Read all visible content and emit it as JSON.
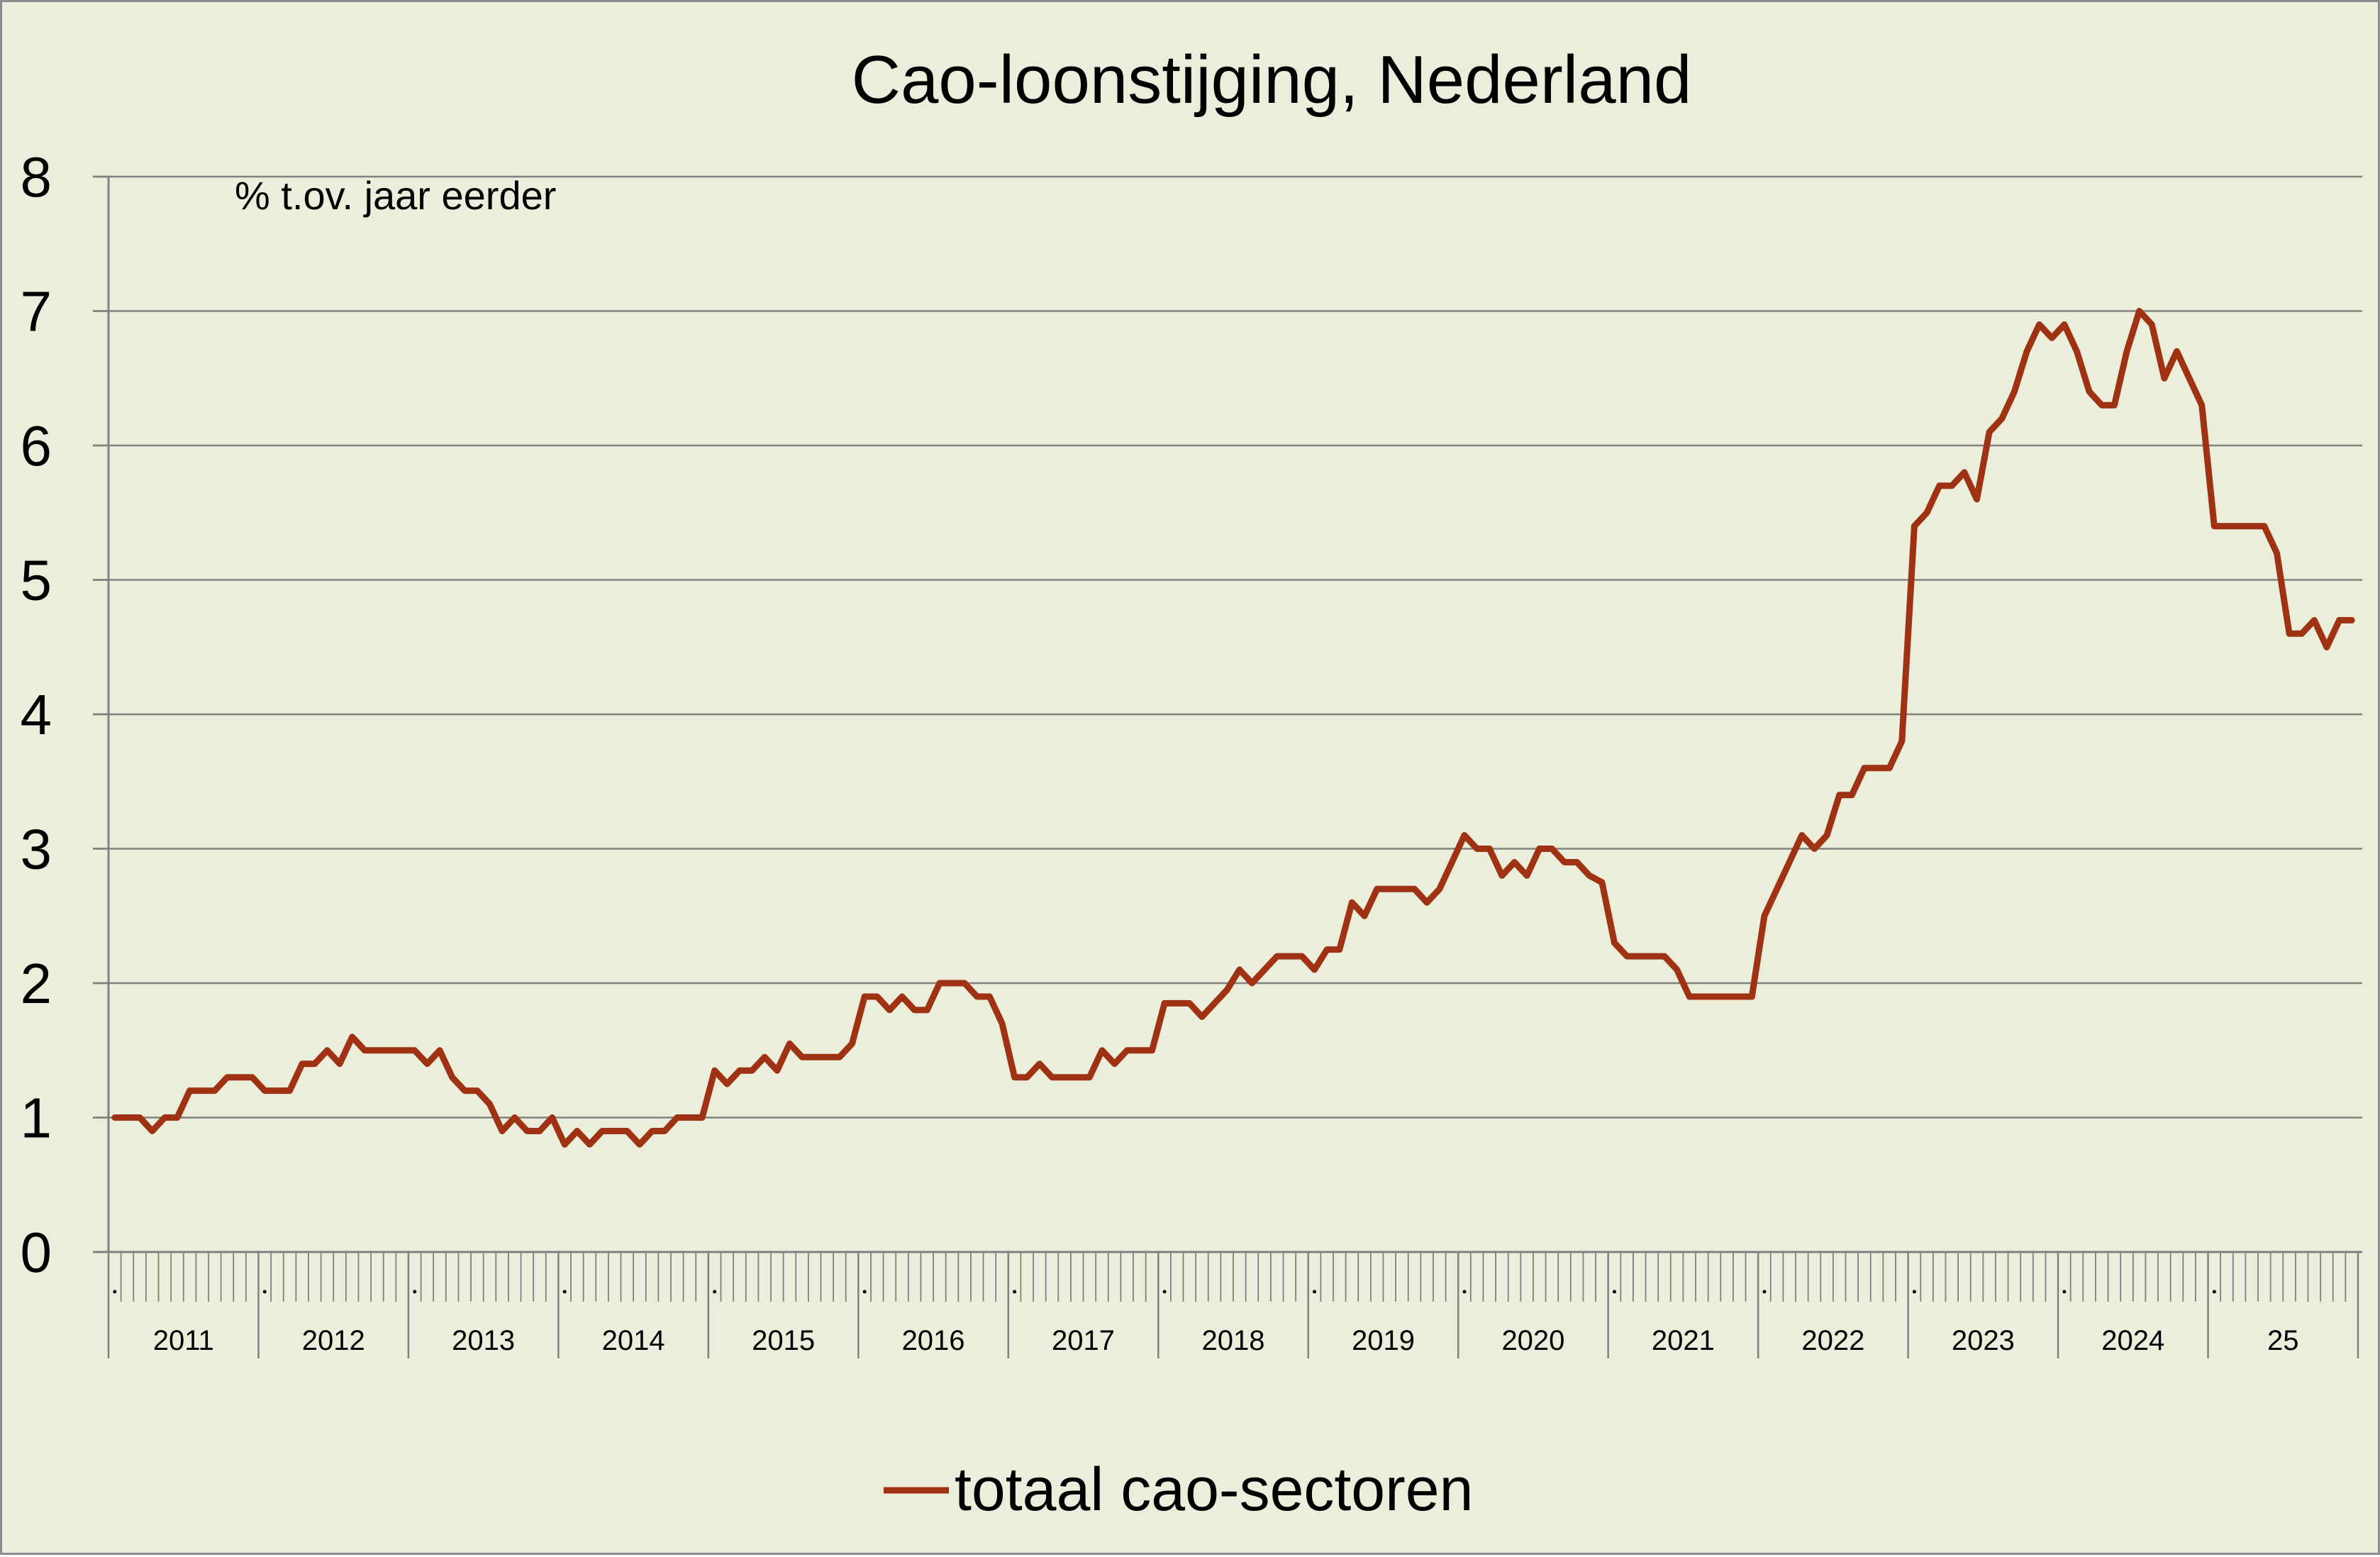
{
  "chart_data": {
    "type": "line",
    "title": "Cao-loonstijging, Nederland",
    "unit_label": "% t.ov. jaar eerder",
    "xlabel": "",
    "ylabel": "",
    "ylim": [
      0,
      8
    ],
    "yticks": [
      "0",
      "1",
      "2",
      "3",
      "4",
      "5",
      "6",
      "7",
      "8"
    ],
    "grid": true,
    "legend_position": "bottom",
    "colors": {
      "background": "#ebeedb",
      "line": "#a03214",
      "grid": "#808080",
      "axis": "#808080"
    },
    "year_labels": [
      "2011",
      "2012",
      "2013",
      "2014",
      "2015",
      "2016",
      "2017",
      "2018",
      "2019",
      "2020",
      "2021",
      "2022",
      "2023",
      "2024",
      "25"
    ],
    "series": [
      {
        "name": "totaal cao-sectoren",
        "start": "2011-01",
        "frequency": "monthly",
        "values": [
          1.0,
          1.0,
          1.0,
          0.9,
          1.0,
          1.0,
          1.2,
          1.2,
          1.2,
          1.3,
          1.3,
          1.3,
          1.2,
          1.2,
          1.2,
          1.4,
          1.4,
          1.5,
          1.4,
          1.6,
          1.5,
          1.5,
          1.5,
          1.5,
          1.5,
          1.4,
          1.5,
          1.3,
          1.2,
          1.2,
          1.1,
          0.9,
          1.0,
          0.9,
          0.9,
          1.0,
          0.8,
          0.9,
          0.8,
          0.9,
          0.9,
          0.9,
          0.8,
          0.9,
          0.9,
          1.0,
          1.0,
          1.0,
          1.35,
          1.25,
          1.35,
          1.35,
          1.45,
          1.35,
          1.55,
          1.45,
          1.45,
          1.45,
          1.45,
          1.55,
          1.9,
          1.9,
          1.8,
          1.9,
          1.8,
          1.8,
          2.0,
          2.0,
          2.0,
          1.9,
          1.9,
          1.7,
          1.3,
          1.3,
          1.4,
          1.3,
          1.3,
          1.3,
          1.3,
          1.5,
          1.4,
          1.5,
          1.5,
          1.5,
          1.85,
          1.85,
          1.85,
          1.75,
          1.85,
          1.95,
          2.1,
          2.0,
          2.1,
          2.2,
          2.2,
          2.2,
          2.1,
          2.25,
          2.25,
          2.6,
          2.5,
          2.7,
          2.7,
          2.7,
          2.7,
          2.6,
          2.7,
          2.9,
          3.1,
          3.0,
          3.0,
          2.8,
          2.9,
          2.8,
          3.0,
          3.0,
          2.9,
          2.9,
          2.8,
          2.75,
          2.3,
          2.2,
          2.2,
          2.2,
          2.2,
          2.1,
          1.9,
          1.9,
          1.9,
          1.9,
          1.9,
          1.9,
          2.5,
          2.7,
          2.9,
          3.1,
          3.0,
          3.1,
          3.4,
          3.4,
          3.6,
          3.6,
          3.6,
          3.8,
          5.4,
          5.5,
          5.7,
          5.7,
          5.8,
          5.6,
          6.1,
          6.2,
          6.4,
          6.7,
          6.9,
          6.8,
          6.9,
          6.7,
          6.4,
          6.3,
          6.3,
          6.7,
          7.0,
          6.9,
          6.5,
          6.7,
          6.5,
          6.3,
          5.4,
          5.4,
          5.4,
          5.4,
          5.4,
          5.2,
          4.6,
          4.6,
          4.7,
          4.5,
          4.7,
          4.7
        ]
      }
    ]
  }
}
